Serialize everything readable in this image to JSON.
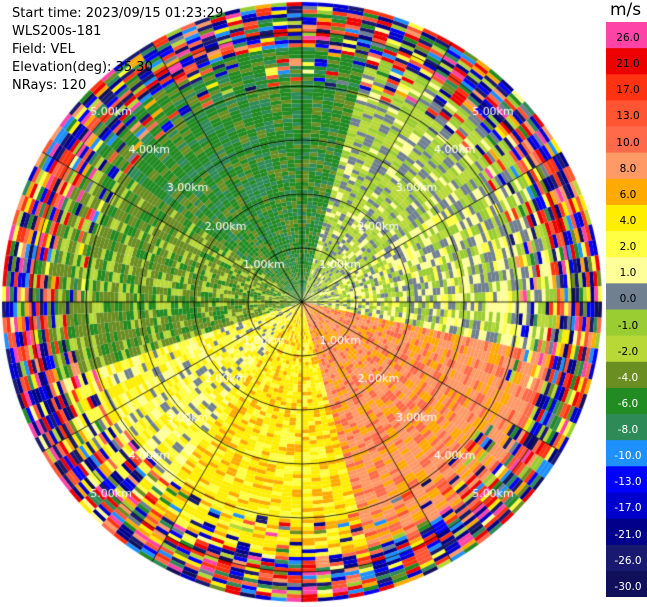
{
  "header": {
    "start_time": "Start time: 2023/09/15 01:23:29",
    "site": "WLS200s-181",
    "field": "Field: VEL",
    "elevation": "Elevation(deg): 35.30",
    "nrays": "NRays: 120"
  },
  "colorbar": {
    "unit": "m/s",
    "levels": [
      {
        "label": "26.0",
        "color": "#ff44a8"
      },
      {
        "label": "21.0",
        "color": "#ee0000"
      },
      {
        "label": "17.0",
        "color": "#ff3311"
      },
      {
        "label": "13.0",
        "color": "#ff5533"
      },
      {
        "label": "10.0",
        "color": "#ff6a4a"
      },
      {
        "label": "8.0",
        "color": "#ff9966"
      },
      {
        "label": "6.0",
        "color": "#ffaa00"
      },
      {
        "label": "4.0",
        "color": "#ffee00"
      },
      {
        "label": "2.0",
        "color": "#ffff44"
      },
      {
        "label": "1.0",
        "color": "#ffff99"
      },
      {
        "label": "0.0",
        "color": "#708090"
      },
      {
        "label": "-1.0",
        "color": "#9acd32"
      },
      {
        "label": "-2.0",
        "color": "#b8d838"
      },
      {
        "label": "-4.0",
        "color": "#6b8e23"
      },
      {
        "label": "-6.0",
        "color": "#228b22"
      },
      {
        "label": "-8.0",
        "color": "#2e8b57"
      },
      {
        "label": "-10.0",
        "color": "#1e90ff"
      },
      {
        "label": "-13.0",
        "color": "#0000ff"
      },
      {
        "label": "-17.0",
        "color": "#0000cd"
      },
      {
        "label": "-21.0",
        "color": "#00008b"
      },
      {
        "label": "-26.0",
        "color": "#191970"
      },
      {
        "label": "-30.0",
        "color": "#10105a"
      }
    ]
  },
  "chart_data": {
    "type": "heatmap",
    "projection": "polar PPI",
    "field": "VEL",
    "nrays": 120,
    "max_range_km": 5.0,
    "range_rings_km": [
      1.0,
      2.0,
      3.0,
      4.0,
      5.0
    ],
    "ring_labels": [
      "1.00km",
      "2.00km",
      "3.00km",
      "4.00km",
      "5.00km"
    ],
    "velocity_pattern": {
      "north_west_sector_mps": -6.0,
      "north_east_sector_mps": -1.0,
      "east_mps": 0.0,
      "south_east_sector_mps": 8.0,
      "south_sector_mps": 4.0,
      "south_west_sector_mps": 2.0,
      "west_sector_mps": -4.0,
      "noisy_beyond_km": 4.2
    }
  }
}
